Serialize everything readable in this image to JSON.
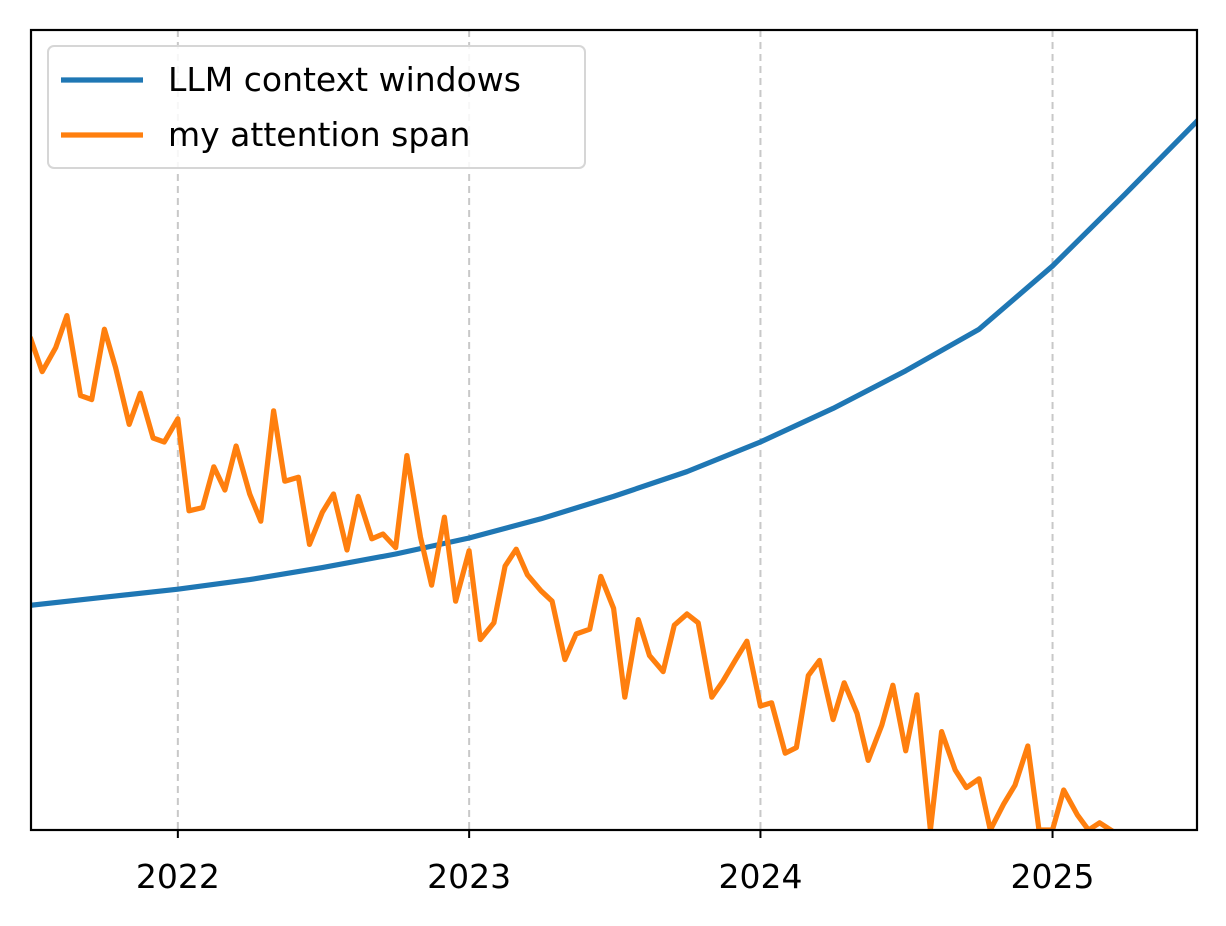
{
  "chart_data": {
    "type": "line",
    "title": "",
    "xlabel": "",
    "ylabel": "",
    "xlim": [
      "2021-07-01",
      "2025-07-01"
    ],
    "ylim": [
      0,
      100
    ],
    "x_ticks": [
      "2022",
      "2023",
      "2024",
      "2025"
    ],
    "grid": {
      "x": true,
      "y": false,
      "style": "dashed"
    },
    "legend": {
      "location": "top-left"
    },
    "series": [
      {
        "name": "LLM context windows",
        "color": "#1f77b4",
        "x": [
          "2021-07-01",
          "2021-10-01",
          "2022-01-01",
          "2022-04-01",
          "2022-07-01",
          "2022-10-01",
          "2023-01-01",
          "2023-04-01",
          "2023-07-01",
          "2023-10-01",
          "2024-01-01",
          "2024-04-01",
          "2024-07-01",
          "2024-10-01",
          "2025-01-01",
          "2025-04-01",
          "2025-07-01"
        ],
        "y": [
          28.1,
          29.1,
          30.1,
          31.3,
          32.8,
          34.5,
          36.5,
          38.9,
          41.7,
          44.8,
          48.5,
          52.7,
          57.4,
          62.6,
          70.5,
          79.4,
          88.6
        ]
      },
      {
        "name": "my attention span",
        "color": "#ff7f0e",
        "x": [
          "2021-07-01",
          "2021-07-15",
          "2021-08-01",
          "2021-08-15",
          "2021-09-01",
          "2021-09-15",
          "2021-10-01",
          "2021-10-15",
          "2021-11-01",
          "2021-11-15",
          "2021-12-01",
          "2021-12-15",
          "2022-01-01",
          "2022-01-15",
          "2022-02-01",
          "2022-02-15",
          "2022-03-01",
          "2022-03-15",
          "2022-04-01",
          "2022-04-15",
          "2022-05-01",
          "2022-05-15",
          "2022-06-01",
          "2022-06-15",
          "2022-07-01",
          "2022-07-15",
          "2022-08-01",
          "2022-08-15",
          "2022-09-01",
          "2022-09-15",
          "2022-10-01",
          "2022-10-15",
          "2022-11-01",
          "2022-11-15",
          "2022-12-01",
          "2022-12-15",
          "2023-01-01",
          "2023-01-15",
          "2023-02-01",
          "2023-02-15",
          "2023-03-01",
          "2023-03-15",
          "2023-04-01",
          "2023-04-15",
          "2023-05-01",
          "2023-05-15",
          "2023-06-01",
          "2023-06-15",
          "2023-07-01",
          "2023-07-15",
          "2023-08-01",
          "2023-08-15",
          "2023-09-01",
          "2023-09-15",
          "2023-10-01",
          "2023-10-15",
          "2023-11-01",
          "2023-11-15",
          "2023-12-01",
          "2023-12-15",
          "2024-01-01",
          "2024-01-15",
          "2024-02-01",
          "2024-02-15",
          "2024-03-01",
          "2024-03-15",
          "2024-04-01",
          "2024-04-15",
          "2024-05-01",
          "2024-05-15",
          "2024-06-01",
          "2024-06-15",
          "2024-07-01",
          "2024-07-15",
          "2024-08-01",
          "2024-08-15",
          "2024-09-01",
          "2024-09-15",
          "2024-10-01",
          "2024-10-15",
          "2024-11-01",
          "2024-11-15",
          "2024-12-01",
          "2024-12-15",
          "2025-01-01",
          "2025-01-15",
          "2025-02-01",
          "2025-02-15",
          "2025-03-01",
          "2025-03-15"
        ],
        "y": [
          61.3,
          57.3,
          60.3,
          64.3,
          54.3,
          53.8,
          62.6,
          57.8,
          50.7,
          54.6,
          49.0,
          48.5,
          51.4,
          39.9,
          40.3,
          45.4,
          42.5,
          48.0,
          42.0,
          38.6,
          52.4,
          43.6,
          44.1,
          35.7,
          39.7,
          42.0,
          35.0,
          41.7,
          36.4,
          37.0,
          35.3,
          46.8,
          36.6,
          30.6,
          39.1,
          28.6,
          34.9,
          23.8,
          25.9,
          33.0,
          35.1,
          31.9,
          29.9,
          28.6,
          21.3,
          24.5,
          25.1,
          31.7,
          27.7,
          16.6,
          26.3,
          21.8,
          19.8,
          25.6,
          27.0,
          25.9,
          16.6,
          18.6,
          21.3,
          23.6,
          15.5,
          15.9,
          9.6,
          10.3,
          19.3,
          21.2,
          13.8,
          18.4,
          14.6,
          8.7,
          13.1,
          18.1,
          9.9,
          16.9,
          0.0,
          12.3,
          7.5,
          5.3,
          6.4,
          0.0,
          3.3,
          5.6,
          10.5,
          0.0,
          0.0,
          5.0,
          1.9,
          0.0,
          0.9,
          0.0
        ]
      }
    ]
  }
}
